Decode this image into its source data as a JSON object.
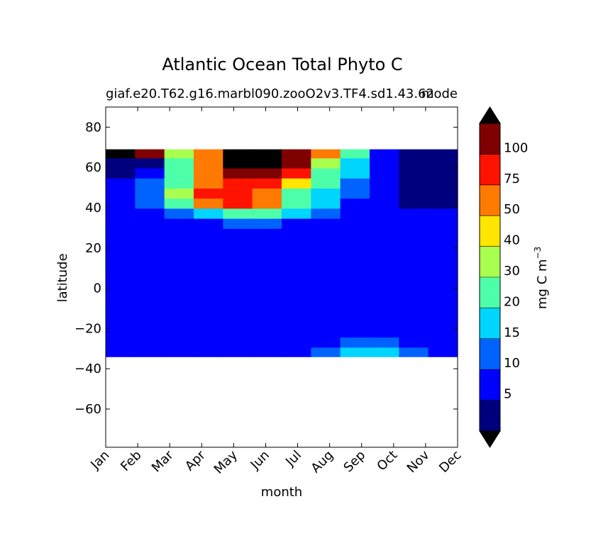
{
  "chart_data": {
    "type": "heatmap",
    "title": "Atlantic Ocean Total Phyto C",
    "subtitle_left": "giaf.e20.T62.g16.marbl090.zooO2v3.TF4.sd1.43.62",
    "subtitle_right": "mode",
    "xlabel": "month",
    "ylabel": "latitude",
    "x_ticks": [
      "Jan",
      "Feb",
      "Mar",
      "Apr",
      "May",
      "Jun",
      "Jul",
      "Aug",
      "Sep",
      "Oct",
      "Nov",
      "Dec"
    ],
    "y_ticks": [
      80,
      60,
      40,
      20,
      0,
      -20,
      -40,
      -60
    ],
    "ylim": [
      -79,
      90
    ],
    "data_lat_range": [
      -34,
      69
    ],
    "colorbar": {
      "label": "mg C m",
      "label_exponent": "−3",
      "levels": [
        0,
        5,
        10,
        15,
        20,
        30,
        40,
        50,
        75,
        100,
        120
      ],
      "tick_labels": [
        "5",
        "10",
        "15",
        "20",
        "30",
        "40",
        "50",
        "75",
        "100"
      ],
      "colors": [
        "#00007f",
        "#0000ff",
        "#0063ff",
        "#00d5ff",
        "#4effa9",
        "#a9ff4e",
        "#ffe500",
        "#ff7a00",
        "#ff1300",
        "#7f0000"
      ],
      "extend_low_color": "#000000",
      "extend_high_color": "#000000"
    },
    "rows": [
      {
        "lat": 67,
        "values": [
          130,
          110,
          40,
          75,
          130,
          130,
          120,
          75,
          25,
          10,
          3,
          1
        ]
      },
      {
        "lat": 62,
        "values": [
          3,
          5,
          25,
          60,
          130,
          130,
          110,
          40,
          20,
          8,
          3,
          3
        ]
      },
      {
        "lat": 57,
        "values": [
          3,
          8,
          28,
          55,
          110,
          110,
          80,
          30,
          18,
          8,
          3,
          3
        ]
      },
      {
        "lat": 52,
        "values": [
          8,
          12,
          30,
          60,
          90,
          80,
          45,
          25,
          15,
          8,
          3,
          3
        ]
      },
      {
        "lat": 47,
        "values": [
          10,
          15,
          35,
          80,
          100,
          60,
          30,
          20,
          12,
          7,
          5,
          5
        ]
      },
      {
        "lat": 42,
        "values": [
          8,
          12,
          25,
          60,
          80,
          55,
          28,
          18,
          10,
          7,
          5,
          5
        ]
      },
      {
        "lat": 37,
        "values": [
          6,
          8,
          12,
          16,
          25,
          22,
          18,
          14,
          10,
          7,
          6,
          6
        ]
      },
      {
        "lat": 32,
        "values": [
          6,
          7,
          9,
          10,
          11,
          11,
          10,
          9,
          8,
          7,
          6,
          6
        ]
      },
      {
        "lat": 27,
        "values": [
          6,
          6,
          7,
          7,
          7,
          7,
          7,
          7,
          6,
          6,
          6,
          6
        ]
      },
      {
        "lat": 20,
        "values": [
          6,
          6,
          6,
          6,
          6,
          6,
          6,
          6,
          6,
          6,
          6,
          6
        ]
      },
      {
        "lat": 10,
        "values": [
          6,
          6,
          6,
          6,
          6,
          6,
          6,
          6,
          6,
          6,
          6,
          6
        ]
      },
      {
        "lat": 0,
        "values": [
          9,
          9,
          9,
          9,
          9,
          9,
          9,
          9,
          9,
          9,
          9,
          9
        ]
      },
      {
        "lat": -5,
        "values": [
          6,
          6,
          6,
          6,
          6,
          6,
          6,
          6,
          6,
          6,
          6,
          6
        ]
      },
      {
        "lat": -15,
        "values": [
          6,
          6,
          6,
          6,
          6,
          6,
          6,
          6,
          6,
          6,
          6,
          6
        ]
      },
      {
        "lat": -22,
        "values": [
          6,
          6,
          6,
          6,
          6,
          6,
          6,
          6,
          10,
          10,
          8,
          6
        ]
      },
      {
        "lat": -27,
        "values": [
          6,
          6,
          6,
          6,
          6,
          6,
          6,
          8,
          11,
          11,
          10,
          8
        ]
      },
      {
        "lat": -32,
        "values": [
          6,
          6,
          6,
          6,
          6,
          6,
          6,
          11,
          16,
          16,
          12,
          10
        ]
      }
    ]
  }
}
